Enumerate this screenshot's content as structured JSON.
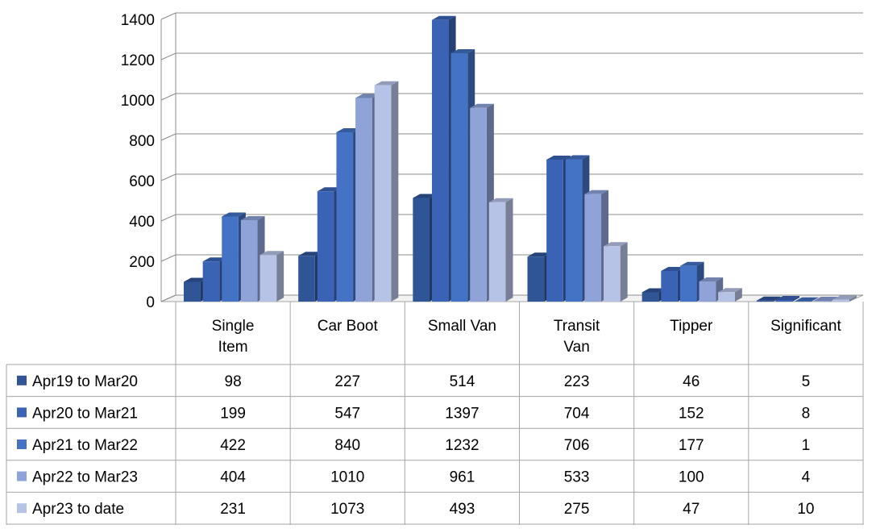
{
  "chart_data": {
    "type": "bar",
    "title": "",
    "xlabel": "",
    "ylabel": "",
    "ylim": [
      0,
      1400
    ],
    "yticks": [
      "0",
      "200",
      "400",
      "600",
      "800",
      "1000",
      "1200",
      "1400"
    ],
    "grid": true,
    "legend_placement": "data-table-left",
    "categories": [
      [
        "Single",
        "Item"
      ],
      [
        "Car Boot"
      ],
      [
        "Small Van"
      ],
      [
        "Transit",
        "Van"
      ],
      [
        "Tipper"
      ],
      [
        "Significant"
      ]
    ],
    "series": [
      {
        "name": "Apr19 to Mar20",
        "color": "#2F5597",
        "values": [
          98,
          227,
          514,
          223,
          46,
          5
        ]
      },
      {
        "name": "Apr20 to Mar21",
        "color": "#3A63B5",
        "values": [
          199,
          547,
          1397,
          704,
          152,
          8
        ]
      },
      {
        "name": "Apr21 to Mar22",
        "color": "#4472C4",
        "values": [
          422,
          840,
          1232,
          706,
          177,
          1
        ]
      },
      {
        "name": "Apr22 to Mar23",
        "color": "#8FA3D9",
        "values": [
          404,
          1010,
          961,
          533,
          100,
          4
        ]
      },
      {
        "name": "Apr23 to date",
        "color": "#B7C3E6",
        "values": [
          231,
          1073,
          493,
          275,
          47,
          10
        ]
      }
    ]
  }
}
